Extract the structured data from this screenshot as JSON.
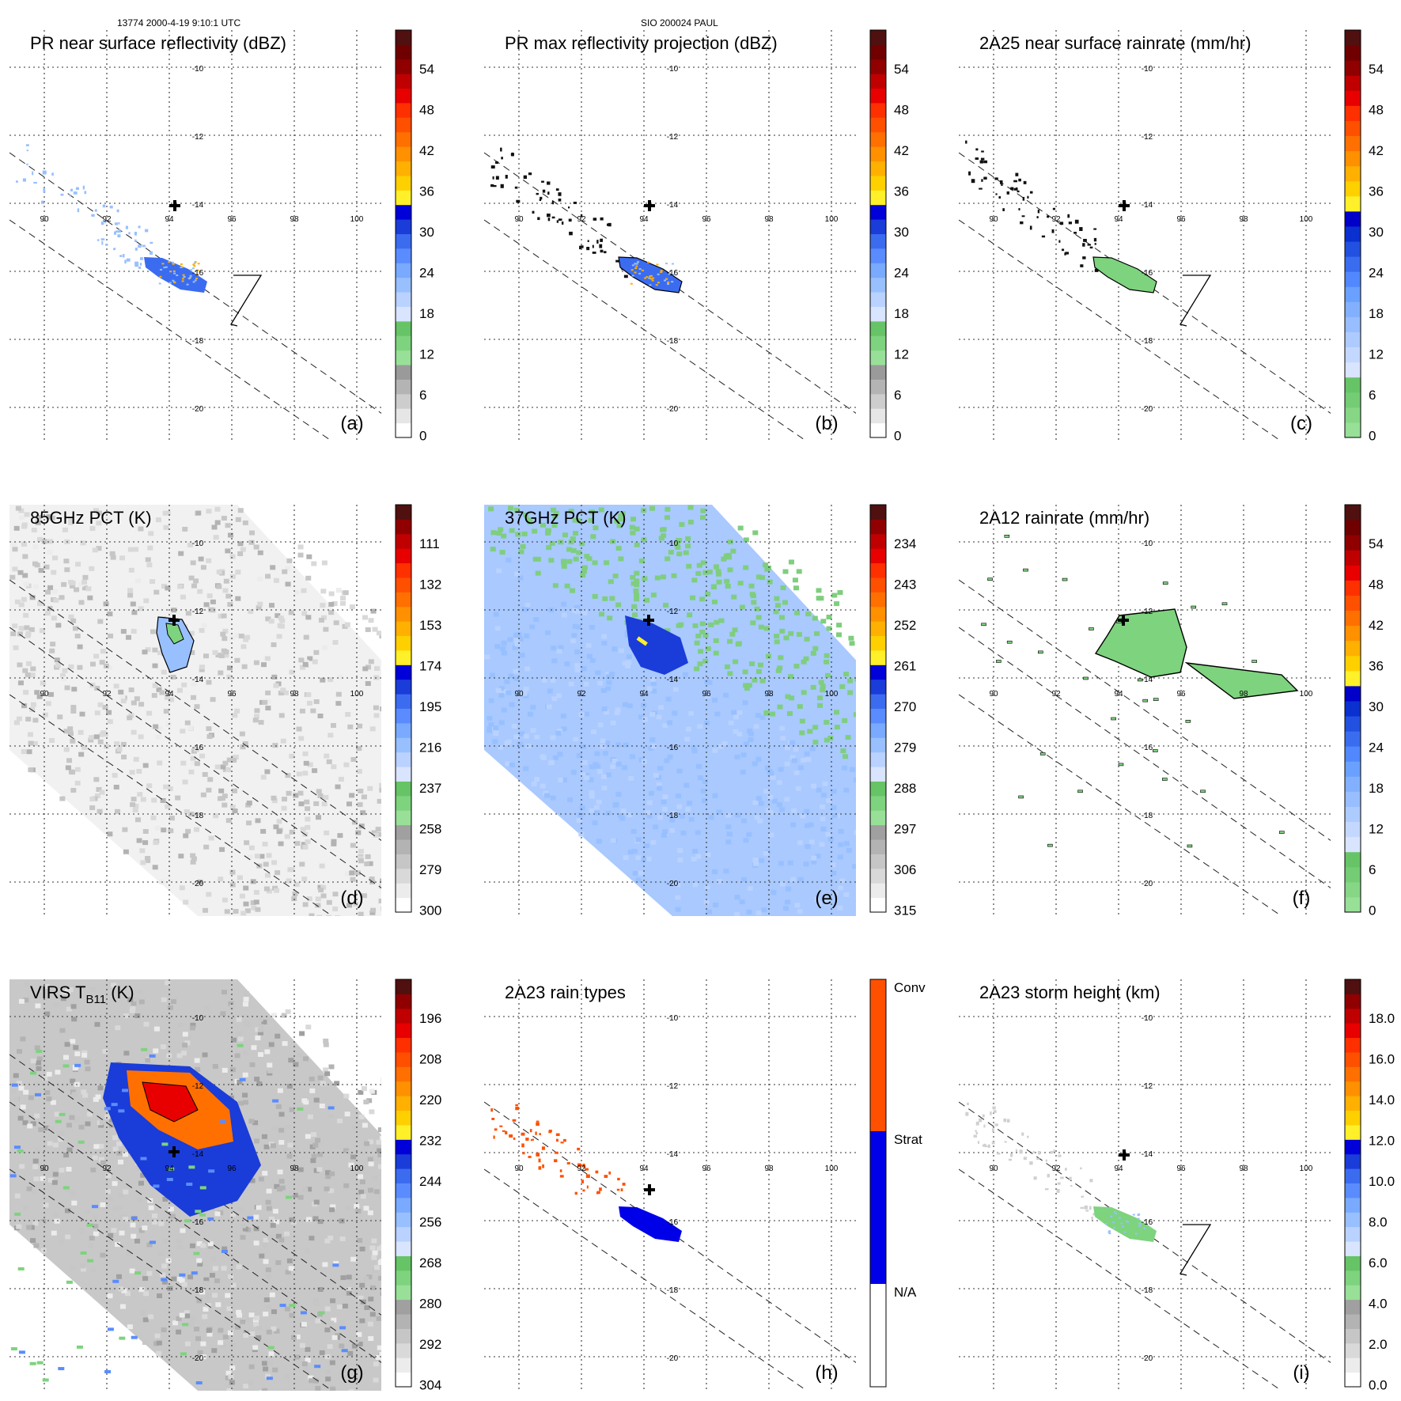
{
  "header": {
    "left": "13774 2000-4-19 9:10:1 UTC",
    "center": "SIO 200024 PAUL"
  },
  "colors": {
    "dbz": [
      "#ffffff",
      "#e6e6e6",
      "#cdcdcd",
      "#b4b4b4",
      "#9a9a9a",
      "#98e098",
      "#7ed37e",
      "#66c466",
      "#d9e4ff",
      "#b9d2ff",
      "#98c0ff",
      "#79aaff",
      "#5a8cff",
      "#3b6cf0",
      "#1a3cd8",
      "#0000d8",
      "#fff02a",
      "#ffd000",
      "#ffb000",
      "#ff9000",
      "#ff7000",
      "#ff5000",
      "#ff3000",
      "#e80000",
      "#c00000",
      "#900000",
      "#700000",
      "#501010"
    ],
    "rate": [
      "#98e098",
      "#86d686",
      "#74cc74",
      "#66c466",
      "#d9e4ff",
      "#c4d8ff",
      "#aecbff",
      "#98beff",
      "#82b0ff",
      "#6aa0ff",
      "#5288ff",
      "#3a6cf0",
      "#2250e0",
      "#0a30d0",
      "#0000c8",
      "#fff02a",
      "#ffd000",
      "#ffb000",
      "#ff9000",
      "#ff7000",
      "#ff5000",
      "#ff3000",
      "#e80000",
      "#c00000",
      "#900000",
      "#700000",
      "#501010"
    ],
    "pct": [
      "#ffffff",
      "#ececec",
      "#d9d9d9",
      "#c6c6c6",
      "#b3b3b3",
      "#a0a0a0",
      "#98e098",
      "#7ed37e",
      "#66c466",
      "#d9e4ff",
      "#b9d2ff",
      "#98c0ff",
      "#79aaff",
      "#5a8cff",
      "#3b6cf0",
      "#1a3cd8",
      "#0000d8",
      "#fff02a",
      "#ffd000",
      "#ffb000",
      "#ff9000",
      "#ff7000",
      "#ff5000",
      "#ff3000",
      "#e80000",
      "#c00000",
      "#900000",
      "#501010"
    ],
    "raintype": [
      "#ffffff",
      "#0000e8",
      "#ff5000"
    ],
    "height": [
      "#ffffff",
      "#ececec",
      "#d9d9d9",
      "#c6c6c6",
      "#b3b3b3",
      "#a0a0a0",
      "#98e098",
      "#7ed37e",
      "#66c466",
      "#d9e4ff",
      "#b9d2ff",
      "#98c0ff",
      "#79aaff",
      "#5a8cff",
      "#3b6cf0",
      "#1a3cd8",
      "#0000d8",
      "#fff02a",
      "#ffd000",
      "#ffb000",
      "#ff9000",
      "#ff7000",
      "#ff5000",
      "#ff3000",
      "#e80000",
      "#c00000",
      "#900000",
      "#501010"
    ]
  },
  "chart_data": [
    {
      "type": "heatmap",
      "label": "(a)",
      "title": "PR near surface reflectivity (dBZ)",
      "colorbar_ticks": [
        "54",
        "48",
        "42",
        "36",
        "30",
        "24",
        "18",
        "12",
        "6",
        "0"
      ],
      "colorbar_range": [
        0,
        60
      ],
      "colormap": "dbz",
      "lon_ticks": [
        "90",
        "92",
        "94",
        "96",
        "98",
        "100"
      ],
      "lat_ticks": [
        "-10",
        "-12",
        "-14",
        "-16",
        "-18",
        "-20"
      ],
      "swath": true,
      "cross_section_line": true
    },
    {
      "type": "heatmap",
      "label": "(b)",
      "title": "PR max reflectivity projection (dBZ)",
      "colorbar_ticks": [
        "54",
        "48",
        "42",
        "36",
        "30",
        "24",
        "18",
        "12",
        "6",
        "0"
      ],
      "colorbar_range": [
        0,
        60
      ],
      "colormap": "dbz",
      "lon_ticks": [
        "90",
        "92",
        "94",
        "96",
        "98",
        "100"
      ],
      "lat_ticks": [
        "-10",
        "-12",
        "-14",
        "-16",
        "-18",
        "-20"
      ],
      "swath": true,
      "cross_section_line": false
    },
    {
      "type": "heatmap",
      "label": "(c)",
      "title": "2A25 near surface rainrate (mm/hr)",
      "colorbar_ticks": [
        "54",
        "48",
        "42",
        "36",
        "30",
        "24",
        "18",
        "12",
        "6",
        "0"
      ],
      "colorbar_range": [
        0,
        60
      ],
      "colormap": "rate",
      "lon_ticks": [
        "90",
        "92",
        "94",
        "96",
        "98",
        "100"
      ],
      "lat_ticks": [
        "-10",
        "-12",
        "-14",
        "-16",
        "-18",
        "-20"
      ],
      "swath": true,
      "cross_section_line": true
    },
    {
      "type": "heatmap",
      "label": "(d)",
      "title": "85GHz PCT (K)",
      "colorbar_ticks": [
        "111",
        "132",
        "153",
        "174",
        "195",
        "216",
        "237",
        "258",
        "279",
        "300"
      ],
      "colorbar_range": [
        300,
        90
      ],
      "colormap": "pct",
      "lon_ticks": [
        "90",
        "92",
        "94",
        "96",
        "98",
        "100"
      ],
      "lat_ticks": [
        "-10",
        "-12",
        "-14",
        "-16",
        "-18",
        "-20"
      ],
      "swath": true,
      "cross_section_line": false
    },
    {
      "type": "heatmap",
      "label": "(e)",
      "title": "37GHz PCT (K)",
      "colorbar_ticks": [
        "234",
        "243",
        "252",
        "261",
        "270",
        "279",
        "288",
        "297",
        "306",
        "315"
      ],
      "colorbar_range": [
        315,
        225
      ],
      "colormap": "pct",
      "lon_ticks": [
        "90",
        "92",
        "94",
        "96",
        "98",
        "100"
      ],
      "lat_ticks": [
        "-10",
        "-12",
        "-14",
        "-16",
        "-18",
        "-20"
      ],
      "swath": false,
      "cross_section_line": false
    },
    {
      "type": "heatmap",
      "label": "(f)",
      "title": "2A12 rainrate (mm/hr)",
      "colorbar_ticks": [
        "54",
        "48",
        "42",
        "36",
        "30",
        "24",
        "18",
        "12",
        "6",
        "0"
      ],
      "colorbar_range": [
        0,
        60
      ],
      "colormap": "rate",
      "lon_ticks": [
        "90",
        "92",
        "94",
        "96",
        "98",
        "100"
      ],
      "lat_ticks": [
        "-10",
        "-12",
        "-14",
        "-16",
        "-18",
        "-20"
      ],
      "swath": true,
      "cross_section_line": false
    },
    {
      "type": "heatmap",
      "label": "(g)",
      "title": "VIRS T",
      "title_sub": "B11",
      "title_suffix": " (K)",
      "colorbar_ticks": [
        "196",
        "208",
        "220",
        "232",
        "244",
        "256",
        "268",
        "280",
        "292",
        "304"
      ],
      "colorbar_range": [
        304,
        184
      ],
      "colormap": "pct",
      "lon_ticks": [
        "90",
        "92",
        "94",
        "96",
        "98",
        "100"
      ],
      "lat_ticks": [
        "-10",
        "-12",
        "-14",
        "-16",
        "-18",
        "-20"
      ],
      "swath": true,
      "cross_section_line": false
    },
    {
      "type": "heatmap",
      "label": "(h)",
      "title": "2A23 rain types",
      "colorbar_ticks": [
        "Conv",
        "Strat",
        "N/A"
      ],
      "colorbar_range": [
        "N/A",
        "Conv"
      ],
      "colormap": "raintype",
      "lon_ticks": [
        "90",
        "92",
        "94",
        "96",
        "98",
        "100"
      ],
      "lat_ticks": [
        "-10",
        "-12",
        "-14",
        "-16",
        "-18",
        "-20"
      ],
      "swath": true,
      "cross_section_line": false
    },
    {
      "type": "heatmap",
      "label": "(i)",
      "title": "2A23 storm height (km)",
      "colorbar_ticks": [
        "18.0",
        "16.0",
        "14.0",
        "12.0",
        "10.0",
        "8.0",
        "6.0",
        "4.0",
        "2.0",
        "0.0"
      ],
      "colorbar_range": [
        0,
        20
      ],
      "colormap": "height",
      "lon_ticks": [
        "90",
        "92",
        "94",
        "96",
        "98",
        "100"
      ],
      "lat_ticks": [
        "-10",
        "-12",
        "-14",
        "-16",
        "-18",
        "-20"
      ],
      "swath": true,
      "cross_section_line": true
    }
  ]
}
